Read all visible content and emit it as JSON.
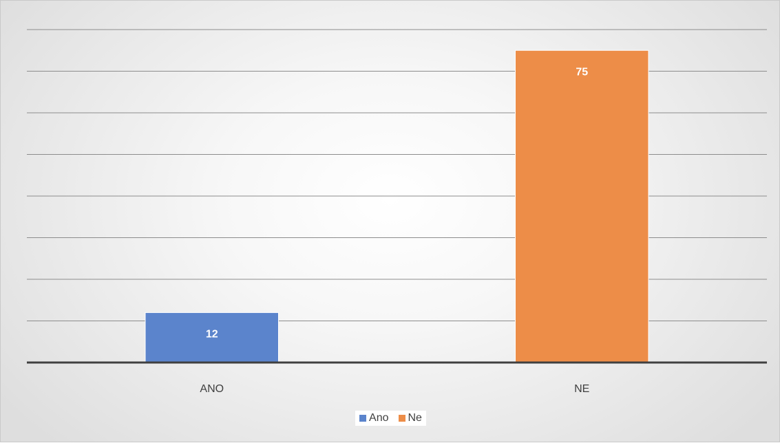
{
  "chart_data": {
    "type": "bar",
    "categories": [
      "ANO",
      "NE"
    ],
    "values": [
      12,
      75
    ],
    "data_labels": [
      "12",
      "75"
    ],
    "bar_colors": [
      "#5b84cc",
      "#ed8d48"
    ],
    "ylim": [
      0,
      80
    ],
    "y_gridline_step": 10,
    "y_axis_labels_shown": false,
    "grid": true,
    "legend": {
      "position": "bottom",
      "items": [
        {
          "label": "Ano",
          "color": "#5b84cc"
        },
        {
          "label": "Ne",
          "color": "#ed8d48"
        }
      ]
    }
  }
}
